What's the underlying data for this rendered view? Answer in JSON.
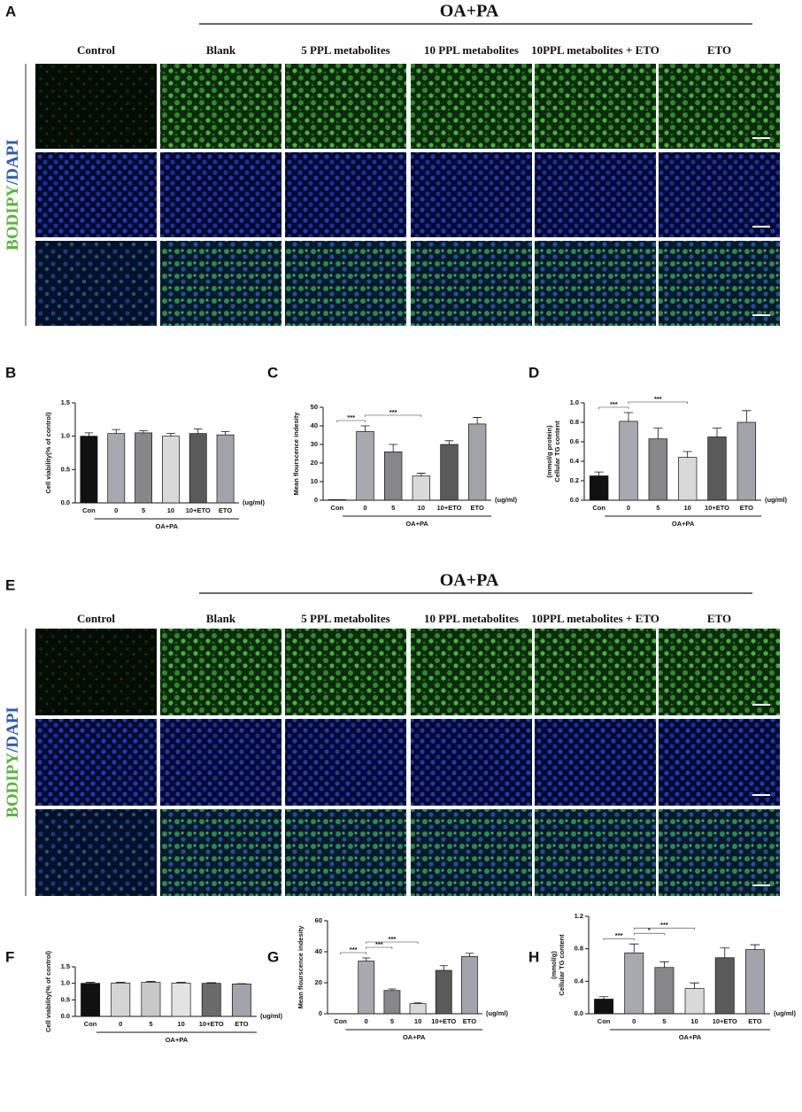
{
  "image_panels": [
    {
      "letter": "A",
      "group_label": "OA+PA",
      "columns": [
        "Control",
        "Blank",
        "5 PPL metabolites",
        "10 PPL metabolites",
        "10PPL metabolites + ETO",
        "ETO"
      ],
      "row_label": [
        "BODIPY",
        "/DAPI"
      ]
    },
    {
      "letter": "E",
      "group_label": "OA+PA",
      "columns": [
        "Control",
        "Blank",
        "5 PPL metabolites",
        "10 PPL metabolites",
        "10PPL metabolites + ETO",
        "ETO"
      ],
      "row_label": [
        "BODIPY",
        "/DAPI"
      ]
    }
  ],
  "chart_data": [
    {
      "type": "bar",
      "letter": "B",
      "ylabel": [
        "Cell viability(% of control)"
      ],
      "categories": [
        "Con",
        "0",
        "5",
        "10",
        "10+ETO",
        "ETO"
      ],
      "unit": "(ug/ml)",
      "group_label": "OA+PA",
      "values": [
        1.0,
        1.04,
        1.05,
        1.0,
        1.04,
        1.02
      ],
      "errors": [
        0.05,
        0.06,
        0.03,
        0.04,
        0.07,
        0.05
      ],
      "colors": [
        "#111111",
        "#a8a8b0",
        "#87878a",
        "#d9d9d9",
        "#5a5a5a",
        "#a3a3ab"
      ],
      "ylim": [
        0,
        1.5
      ],
      "yticks": [
        {
          "value": 0,
          "label": "0.0"
        },
        {
          "value": 0.5,
          "label": "0.5"
        },
        {
          "value": 1,
          "label": "1.0"
        },
        {
          "value": 1.5,
          "label": "1.5"
        }
      ],
      "brackets": []
    },
    {
      "type": "bar",
      "letter": "C",
      "ylabel": [
        "Mean flourscence indesity"
      ],
      "categories": [
        "Con",
        "0",
        "5",
        "10",
        "10+ETO",
        "ETO"
      ],
      "unit": "(ug/ml)",
      "group_label": "OA+PA",
      "values": [
        0.3,
        37,
        26,
        13,
        30,
        41
      ],
      "errors": [
        0,
        3,
        4,
        1.5,
        2,
        3.5
      ],
      "colors": [
        "#111111",
        "#a8a8b0",
        "#87878a",
        "#d9d9d9",
        "#5a5a5a",
        "#a3a3ab"
      ],
      "ylim": [
        0,
        50
      ],
      "yticks": [
        0,
        10,
        20,
        30,
        40,
        50
      ],
      "brackets": [
        {
          "label": "***",
          "from": 0,
          "to": 1
        },
        {
          "label": "***",
          "from": 1,
          "to": 3
        }
      ]
    },
    {
      "type": "bar",
      "letter": "D",
      "ylabel": [
        "Cellular TG content",
        "(mmol/g protein)"
      ],
      "categories": [
        "Con",
        "0",
        "5",
        "10",
        "10+ETO",
        "ETO"
      ],
      "unit": "(ug/ml)",
      "group_label": "OA+PA",
      "values": [
        0.25,
        0.81,
        0.63,
        0.44,
        0.65,
        0.8
      ],
      "errors": [
        0.04,
        0.09,
        0.11,
        0.06,
        0.09,
        0.12
      ],
      "colors": [
        "#111111",
        "#a8a8b0",
        "#87878a",
        "#d9d9d9",
        "#5a5a5a",
        "#a3a3ab"
      ],
      "ylim": [
        0,
        1
      ],
      "yticks": [
        {
          "value": 0,
          "label": "0.0"
        },
        {
          "value": 0.2,
          "label": "0.2"
        },
        {
          "value": 0.4,
          "label": "0.4"
        },
        {
          "value": 0.6,
          "label": "0.6"
        },
        {
          "value": 0.8,
          "label": "0.8"
        },
        {
          "value": 1,
          "label": "1.0"
        }
      ],
      "brackets": [
        {
          "label": "***",
          "from": 0,
          "to": 1
        },
        {
          "label": "***",
          "from": 1,
          "to": 3
        }
      ]
    },
    {
      "type": "bar",
      "letter": "F",
      "ylabel": [
        "Cell viability(% of control)"
      ],
      "categories": [
        "Con",
        "0",
        "5",
        "10",
        "10+ETO",
        "ETO"
      ],
      "unit": "(ug/ml)",
      "group_label": "OA+PA",
      "values": [
        1.0,
        1.01,
        1.03,
        1.01,
        1.0,
        0.98
      ],
      "errors": [
        0.03,
        0.02,
        0.03,
        0.02,
        0.02,
        0.01
      ],
      "colors": [
        "#111111",
        "#d4d4d4",
        "#c8c8c8",
        "#e3e3e3",
        "#6a6a6a",
        "#a3a3ab"
      ],
      "ylim": [
        0,
        1.5
      ],
      "yticks": [
        {
          "value": 0,
          "label": "0.0"
        },
        {
          "value": 0.5,
          "label": "0.5"
        },
        {
          "value": 1,
          "label": "1.0"
        },
        {
          "value": 1.5,
          "label": "1.5"
        }
      ],
      "brackets": []
    },
    {
      "type": "bar",
      "letter": "G",
      "ylabel": [
        "Mean flourscence indesity"
      ],
      "categories": [
        "Con",
        "0",
        "5",
        "10",
        "10+ETO",
        "ETO"
      ],
      "unit": "(ug/ml)",
      "group_label": "OA+PA",
      "values": [
        0,
        34,
        15,
        6.5,
        28,
        37
      ],
      "errors": [
        0,
        2,
        1,
        0.5,
        3,
        2
      ],
      "colors": [
        "#111111",
        "#a8a8b0",
        "#87878a",
        "#d9d9d9",
        "#5a5a5a",
        "#a3a3ab"
      ],
      "ylim": [
        0,
        60
      ],
      "yticks": [
        0,
        20,
        40,
        60
      ],
      "brackets": [
        {
          "label": "***",
          "from": 0,
          "to": 1
        },
        {
          "label": "***",
          "from": 1,
          "to": 2
        },
        {
          "label": "***",
          "from": 1,
          "to": 3
        }
      ]
    },
    {
      "type": "bar",
      "letter": "H",
      "ylabel": [
        "Cellular TG content",
        "(mmol/g)"
      ],
      "categories": [
        "Con",
        "0",
        "5",
        "10",
        "10+ETO",
        "ETO"
      ],
      "unit": "(ug/ml)",
      "group_label": "OA+PA",
      "values": [
        0.18,
        0.75,
        0.57,
        0.31,
        0.69,
        0.79
      ],
      "errors": [
        0.03,
        0.11,
        0.07,
        0.07,
        0.12,
        0.06
      ],
      "colors": [
        "#111111",
        "#a8a8b0",
        "#87878a",
        "#d9d9d9",
        "#5a5a5a",
        "#a3a3ab"
      ],
      "ylim": [
        0,
        1.2
      ],
      "yticks": [
        {
          "value": 0,
          "label": "0.0"
        },
        {
          "value": 0.4,
          "label": "0.4"
        },
        {
          "value": 0.8,
          "label": "0.8"
        },
        {
          "value": 1.2,
          "label": "1.2"
        }
      ],
      "brackets": [
        {
          "label": "***",
          "from": 0,
          "to": 1
        },
        {
          "label": "*",
          "from": 1,
          "to": 2
        },
        {
          "label": "***",
          "from": 1,
          "to": 3
        }
      ]
    }
  ]
}
